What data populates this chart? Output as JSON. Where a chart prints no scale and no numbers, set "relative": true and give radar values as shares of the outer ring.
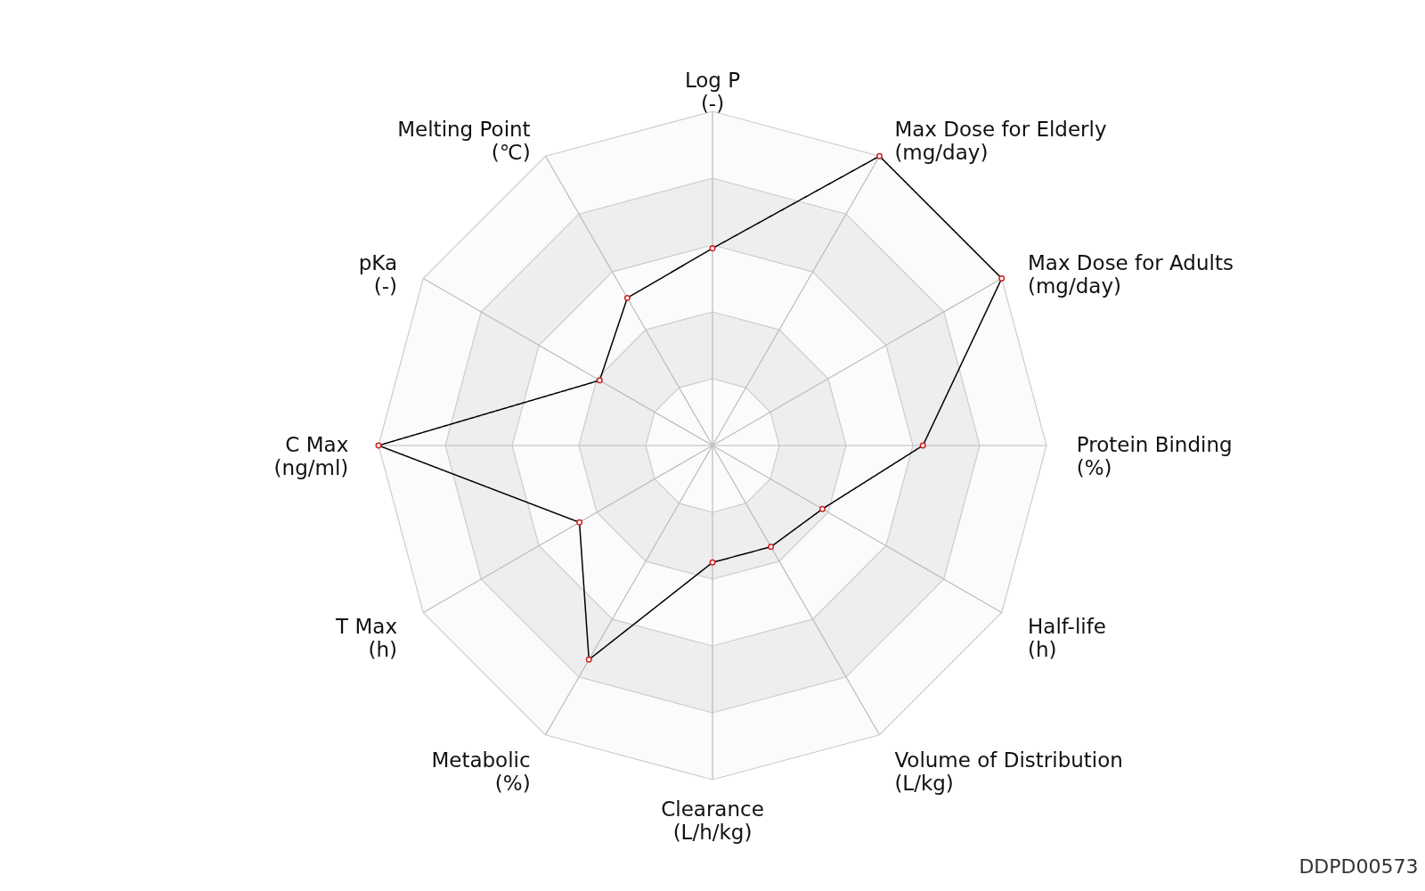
{
  "chart_data": {
    "type": "radar",
    "categories": [
      "Log P\n(-)",
      "Max Dose for Elderly\n(mg/day)",
      "Max Dose for Adults\n(mg/day)",
      "Protein Binding\n(%)",
      "Half-life\n(h)",
      "Volume of Distribution\n(L/kg)",
      "Clearance\n(L/h/kg)",
      "Metabolic\n(%)",
      "T Max\n(h)",
      "C Max\n(ng/ml)",
      "pKa\n(-)",
      "Melting Point\n(℃)"
    ],
    "series": [
      {
        "color": "#000000",
        "values": [
          0.59,
          1.0,
          1.0,
          0.63,
          0.38,
          0.35,
          0.35,
          0.74,
          0.46,
          1.0,
          0.39,
          0.51
        ]
      }
    ],
    "relative": true,
    "marker": "circle",
    "grid": true,
    "annotations": [
      "DDPD00573"
    ]
  }
}
